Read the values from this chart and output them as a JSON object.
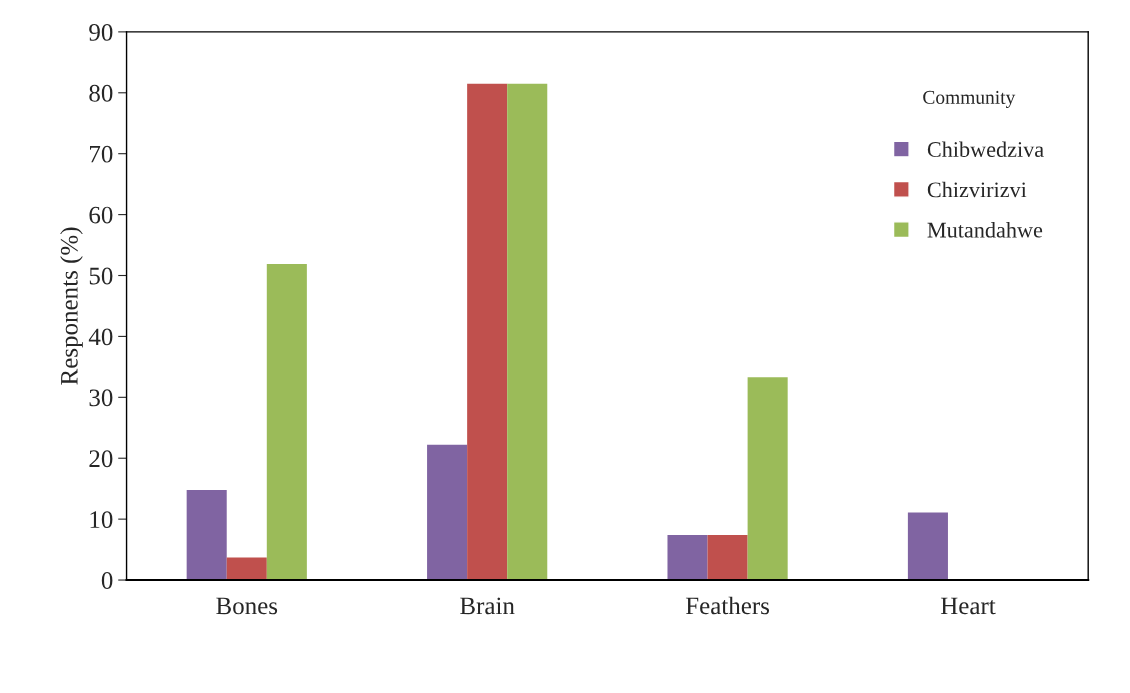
{
  "chart_data": {
    "type": "bar",
    "ylabel": "Responents (%)",
    "legend_title": "Community",
    "legend": "top right",
    "grid": false,
    "categories": [
      "Bones",
      "Brain",
      "Feathers",
      "Heart"
    ],
    "series": [
      {
        "name": "Chibwedziva",
        "color": "#8064a2",
        "values": [
          14.8,
          22.2,
          7.4,
          11.1
        ]
      },
      {
        "name": "Chizvirizvi",
        "color": "#c0504d",
        "values": [
          3.7,
          81.5,
          7.4,
          0
        ]
      },
      {
        "name": "Mutandahwe",
        "color": "#9bbb59",
        "values": [
          51.9,
          81.5,
          33.3,
          0
        ]
      }
    ],
    "ylim": [
      0,
      90
    ],
    "yticks": [
      0,
      10,
      20,
      30,
      40,
      50,
      60,
      70,
      80,
      90
    ]
  }
}
